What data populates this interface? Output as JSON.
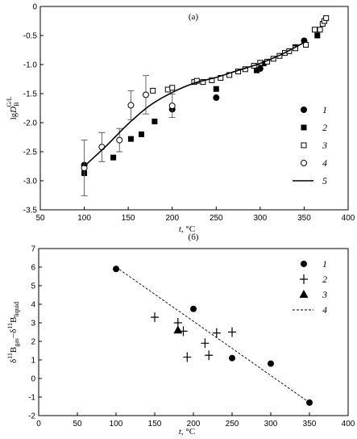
{
  "chart_data": [
    {
      "type": "scatter",
      "panel_label": "(a)",
      "xlabel_main": "t",
      "xlabel_unit": ", °C",
      "ylabel_main": "lg",
      "ylabel_var": "D",
      "ylabel_sub": "B",
      "ylabel_sup": "G/L",
      "xlim": [
        50,
        400
      ],
      "ylim": [
        -3.5,
        0
      ],
      "xticks": [
        50,
        100,
        150,
        200,
        250,
        300,
        350,
        400
      ],
      "yticks": [
        0,
        -0.5,
        -1.0,
        -1.5,
        -2.0,
        -2.5,
        -3.0,
        -3.5
      ],
      "ytick_labels": [
        "0",
        "-0.5",
        "-1.0",
        "-1.5",
        "-2.0",
        "-2.5",
        "-3.0",
        "-3.5"
      ],
      "legend_position": "right",
      "series": [
        {
          "name": "1",
          "marker": "circle-filled",
          "x": [
            100,
            200,
            250,
            300,
            350
          ],
          "y": [
            -2.73,
            -1.77,
            -1.57,
            -1.07,
            -0.59
          ]
        },
        {
          "name": "2",
          "marker": "square-filled",
          "x": [
            100,
            133,
            153,
            165,
            180,
            250,
            296,
            304,
            340,
            365
          ],
          "y": [
            -2.87,
            -2.6,
            -2.28,
            -2.2,
            -1.98,
            -1.42,
            -1.1,
            -0.98,
            -0.7,
            -0.5
          ]
        },
        {
          "name": "3",
          "marker": "square-open",
          "x": [
            178,
            195,
            200,
            225,
            228,
            235,
            245,
            255,
            265,
            275,
            283,
            293,
            300,
            308,
            315,
            322,
            328,
            333,
            340,
            352,
            362,
            368,
            371,
            373,
            375
          ],
          "y": [
            -1.45,
            -1.43,
            -1.4,
            -1.3,
            -1.28,
            -1.3,
            -1.27,
            -1.23,
            -1.18,
            -1.12,
            -1.08,
            -1.02,
            -0.97,
            -0.95,
            -0.9,
            -0.85,
            -0.8,
            -0.77,
            -0.72,
            -0.66,
            -0.4,
            -0.4,
            -0.3,
            -0.25,
            -0.2
          ]
        },
        {
          "name": "4",
          "marker": "circle-open",
          "x": [
            100,
            120,
            140,
            153,
            170,
            200
          ],
          "y": [
            -2.78,
            -2.42,
            -2.3,
            -1.7,
            -1.52,
            -1.71
          ],
          "err": [
            0.48,
            0.25,
            0.2,
            0.25,
            0.33,
            0.2
          ]
        },
        {
          "name": "5",
          "marker": "line",
          "x": [
            100,
            125,
            150,
            175,
            200,
            225,
            250,
            275,
            300,
            325,
            350
          ],
          "y": [
            -2.75,
            -2.4,
            -2.02,
            -1.7,
            -1.48,
            -1.32,
            -1.22,
            -1.1,
            -0.98,
            -0.82,
            -0.62
          ]
        }
      ]
    },
    {
      "type": "scatter",
      "panel_label": "(б)",
      "xlabel_main": "t",
      "xlabel_unit": ", °C",
      "ylabel_delta1": "δ",
      "ylabel_sup1": "11",
      "ylabel_b1": "B",
      "ylabel_sub1": "gas",
      "ylabel_dash": "−δ",
      "ylabel_sup2": "11",
      "ylabel_b2": "B",
      "ylabel_sub2": "liquid",
      "xlim": [
        0,
        400
      ],
      "ylim": [
        -2,
        7
      ],
      "xticks": [
        0,
        50,
        100,
        150,
        200,
        250,
        300,
        350,
        400
      ],
      "yticks": [
        7,
        6,
        5,
        4,
        3,
        2,
        1,
        0,
        -1,
        -2
      ],
      "legend_position": "top-right",
      "series": [
        {
          "name": "1",
          "marker": "circle-filled",
          "x": [
            100,
            200,
            250,
            300,
            350
          ],
          "y": [
            5.9,
            3.75,
            1.1,
            0.8,
            -1.3
          ]
        },
        {
          "name": "2",
          "marker": "plus",
          "x": [
            150,
            180,
            187,
            192,
            215,
            220,
            230,
            250
          ],
          "y": [
            3.3,
            3.0,
            2.55,
            1.15,
            1.9,
            1.25,
            2.45,
            2.5
          ]
        },
        {
          "name": "3",
          "marker": "triangle-filled",
          "x": [
            180
          ],
          "y": [
            2.6
          ]
        },
        {
          "name": "4",
          "marker": "dashed-line",
          "x": [
            100,
            350
          ],
          "y": [
            6.0,
            -1.3
          ]
        }
      ]
    }
  ]
}
